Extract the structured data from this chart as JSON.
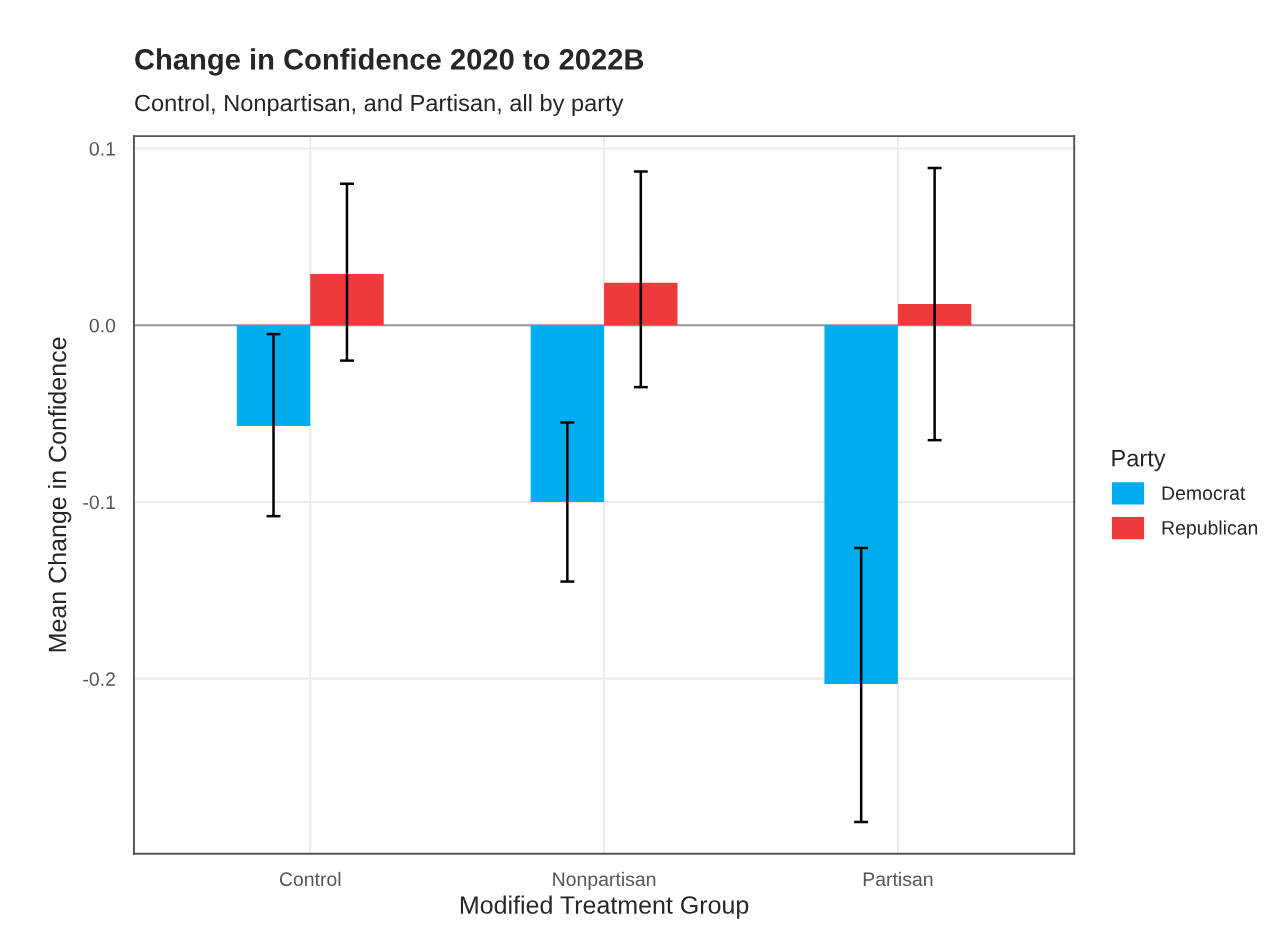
{
  "chart_data": {
    "type": "bar",
    "title": "Change in Confidence 2020 to 2022B",
    "subtitle": "Control, Nonpartisan, and Partisan, all by party",
    "xlabel": "Modified Treatment Group",
    "ylabel": "Mean Change in Confidence",
    "legend_title": "Party",
    "categories": [
      "Control",
      "Nonpartisan",
      "Partisan"
    ],
    "series": [
      {
        "name": "Democrat",
        "color": "#00aeef",
        "values": [
          -0.057,
          -0.1,
          -0.203
        ],
        "errors": [
          [
            -0.108,
            -0.005
          ],
          [
            -0.145,
            -0.055
          ],
          [
            -0.281,
            -0.126
          ]
        ]
      },
      {
        "name": "Republican",
        "color": "#ee3a3a",
        "values": [
          0.029,
          0.024,
          0.012
        ],
        "errors": [
          [
            -0.02,
            0.08
          ],
          [
            -0.035,
            0.087
          ],
          [
            -0.065,
            0.089
          ]
        ]
      }
    ],
    "ylim": [
      -0.299,
      0.107
    ],
    "yticks": [
      {
        "value": 0.1,
        "label": "0.1"
      },
      {
        "value": 0.0,
        "label": "0.0"
      },
      {
        "value": -0.1,
        "label": "-0.1"
      },
      {
        "value": -0.2,
        "label": "-0.2"
      }
    ],
    "ref_lines": [
      {
        "axis": "y",
        "value": 0,
        "color": "#999999"
      }
    ],
    "grid": true,
    "legend": "right"
  }
}
